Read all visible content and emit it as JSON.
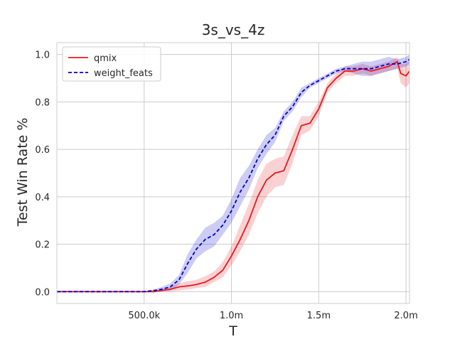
{
  "chart_data": {
    "type": "line",
    "title": "3s_vs_4z",
    "xlabel": "T",
    "ylabel": "Test Win Rate %",
    "xlim": [
      0,
      2020000
    ],
    "ylim": [
      -0.05,
      1.05
    ],
    "xticks": [
      {
        "value": 500000,
        "label": "500.0k"
      },
      {
        "value": 1000000,
        "label": "1.0m"
      },
      {
        "value": 1500000,
        "label": "1.5m"
      },
      {
        "value": 2000000,
        "label": "2.0m"
      }
    ],
    "yticks": [
      {
        "value": 0.0,
        "label": "0.0"
      },
      {
        "value": 0.2,
        "label": "0.2"
      },
      {
        "value": 0.4,
        "label": "0.4"
      },
      {
        "value": 0.6,
        "label": "0.6"
      },
      {
        "value": 0.8,
        "label": "0.8"
      },
      {
        "value": 1.0,
        "label": "1.0"
      }
    ],
    "grid": true,
    "legend_position": "top-left",
    "series": [
      {
        "name": "qmix",
        "color": "#e41a1c",
        "line_style": "solid",
        "x": [
          0,
          200000,
          400000,
          500000,
          560000,
          600000,
          650000,
          700000,
          760000,
          800000,
          850000,
          900000,
          950000,
          1000000,
          1050000,
          1100000,
          1150000,
          1200000,
          1250000,
          1300000,
          1350000,
          1400000,
          1450000,
          1500000,
          1550000,
          1600000,
          1650000,
          1700000,
          1750000,
          1800000,
          1850000,
          1900000,
          1950000,
          1970000,
          2000000,
          2020000
        ],
        "y": [
          0.0,
          0.0,
          0.0,
          0.0,
          0.0,
          0.005,
          0.01,
          0.02,
          0.025,
          0.03,
          0.04,
          0.06,
          0.09,
          0.15,
          0.22,
          0.3,
          0.4,
          0.47,
          0.5,
          0.51,
          0.6,
          0.7,
          0.71,
          0.77,
          0.86,
          0.9,
          0.93,
          0.93,
          0.94,
          0.93,
          0.94,
          0.95,
          0.97,
          0.92,
          0.91,
          0.93
        ],
        "lower": [
          0.0,
          0.0,
          0.0,
          0.0,
          0.0,
          0.0,
          0.0,
          0.005,
          0.01,
          0.015,
          0.02,
          0.04,
          0.06,
          0.11,
          0.17,
          0.24,
          0.33,
          0.4,
          0.44,
          0.45,
          0.54,
          0.66,
          0.68,
          0.74,
          0.84,
          0.88,
          0.91,
          0.91,
          0.92,
          0.91,
          0.92,
          0.93,
          0.94,
          0.88,
          0.86,
          0.88
        ],
        "upper": [
          0.0,
          0.0,
          0.0,
          0.0,
          0.005,
          0.01,
          0.02,
          0.035,
          0.045,
          0.05,
          0.065,
          0.085,
          0.125,
          0.19,
          0.28,
          0.37,
          0.47,
          0.54,
          0.56,
          0.57,
          0.66,
          0.74,
          0.74,
          0.8,
          0.88,
          0.92,
          0.95,
          0.95,
          0.96,
          0.95,
          0.96,
          0.97,
          0.99,
          0.96,
          0.96,
          0.98
        ]
      },
      {
        "name": "weight_feats",
        "color": "#0000cc",
        "line_style": "dashed",
        "x": [
          0,
          200000,
          400000,
          500000,
          560000,
          600000,
          650000,
          700000,
          750000,
          800000,
          850000,
          900000,
          950000,
          1000000,
          1050000,
          1100000,
          1150000,
          1200000,
          1250000,
          1300000,
          1350000,
          1400000,
          1450000,
          1500000,
          1550000,
          1600000,
          1650000,
          1700000,
          1750000,
          1800000,
          1850000,
          1900000,
          1950000,
          2000000,
          2020000
        ],
        "y": [
          0.0,
          0.0,
          0.0,
          0.0,
          0.005,
          0.01,
          0.02,
          0.05,
          0.12,
          0.18,
          0.22,
          0.24,
          0.28,
          0.34,
          0.42,
          0.48,
          0.56,
          0.62,
          0.66,
          0.74,
          0.78,
          0.84,
          0.87,
          0.89,
          0.91,
          0.93,
          0.94,
          0.94,
          0.94,
          0.94,
          0.95,
          0.96,
          0.96,
          0.97,
          0.98
        ],
        "lower": [
          0.0,
          0.0,
          0.0,
          0.0,
          0.0,
          0.0,
          0.005,
          0.03,
          0.08,
          0.14,
          0.17,
          0.19,
          0.24,
          0.29,
          0.36,
          0.43,
          0.52,
          0.58,
          0.63,
          0.72,
          0.76,
          0.82,
          0.86,
          0.88,
          0.9,
          0.92,
          0.93,
          0.92,
          0.91,
          0.91,
          0.92,
          0.93,
          0.94,
          0.95,
          0.96
        ],
        "upper": [
          0.0,
          0.0,
          0.0,
          0.0,
          0.01,
          0.02,
          0.035,
          0.07,
          0.16,
          0.22,
          0.27,
          0.29,
          0.32,
          0.39,
          0.48,
          0.53,
          0.6,
          0.66,
          0.69,
          0.76,
          0.8,
          0.86,
          0.88,
          0.9,
          0.92,
          0.94,
          0.95,
          0.96,
          0.97,
          0.97,
          0.98,
          0.99,
          0.98,
          0.99,
          1.0
        ]
      }
    ]
  }
}
